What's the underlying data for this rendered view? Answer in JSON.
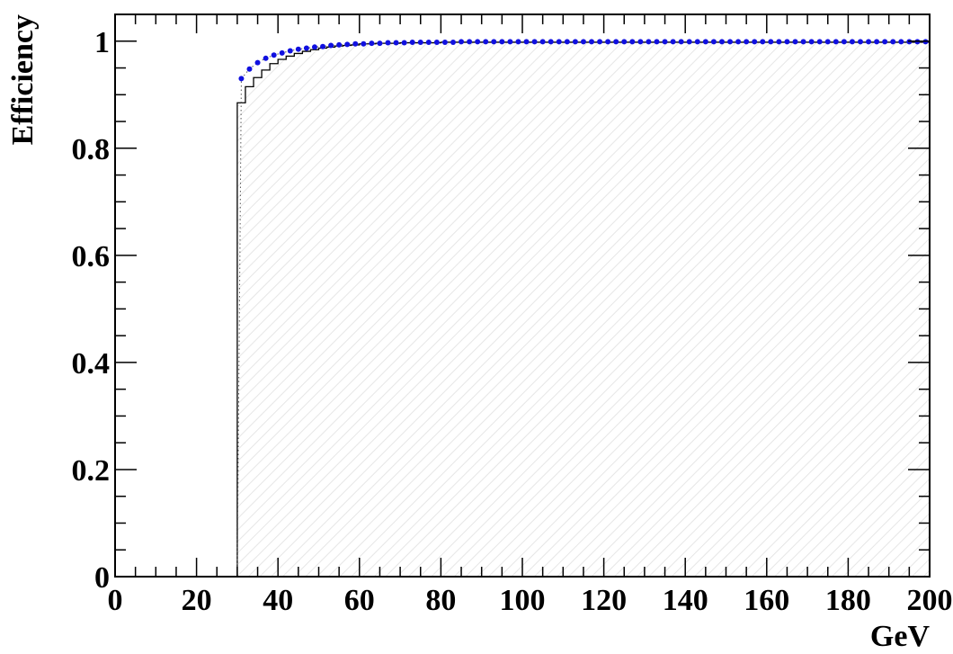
{
  "chart_data": {
    "type": "line",
    "title": "",
    "xlabel": "GeV",
    "ylabel": "Efficiency",
    "xlim": [
      0,
      200
    ],
    "ylim": [
      0,
      1.05
    ],
    "x_ticks": [
      0,
      20,
      40,
      60,
      80,
      100,
      120,
      140,
      160,
      180,
      200
    ],
    "x_tick_labels": [
      "0",
      "20",
      "40",
      "60",
      "80",
      "100",
      "120",
      "140",
      "160",
      "180",
      "200"
    ],
    "y_ticks": [
      0,
      0.2,
      0.4,
      0.6,
      0.8,
      1
    ],
    "y_tick_labels": [
      "0",
      "0.2",
      "0.4",
      "0.6",
      "0.8",
      "1"
    ],
    "grid": false,
    "legend": false,
    "colors": {
      "points": "#1010e0",
      "step": "#000000",
      "hatch": "#e6e6e6"
    },
    "series": [
      {
        "style": "points",
        "x": [
          31,
          33,
          35,
          37,
          39,
          41,
          43,
          45,
          47,
          49,
          51,
          53,
          55,
          57,
          59,
          61,
          63,
          65,
          67,
          69,
          71,
          73,
          75,
          77,
          79,
          81,
          83,
          85,
          87,
          89,
          91,
          93,
          95,
          97,
          99,
          101,
          103,
          105,
          107,
          109,
          111,
          113,
          115,
          117,
          119,
          121,
          123,
          125,
          127,
          129,
          131,
          133,
          135,
          137,
          139,
          141,
          143,
          145,
          147,
          149,
          151,
          153,
          155,
          157,
          159,
          161,
          163,
          165,
          167,
          169,
          171,
          173,
          175,
          177,
          179,
          181,
          183,
          185,
          187,
          189,
          191,
          193,
          195,
          197,
          199
        ],
        "y": [
          0.93,
          0.948,
          0.96,
          0.968,
          0.974,
          0.978,
          0.982,
          0.985,
          0.987,
          0.989,
          0.99,
          0.992,
          0.993,
          0.994,
          0.995,
          0.995,
          0.996,
          0.996,
          0.997,
          0.997,
          0.997,
          0.998,
          0.998,
          0.998,
          0.998,
          0.998,
          0.998,
          0.999,
          0.999,
          0.999,
          0.999,
          0.999,
          0.999,
          0.999,
          0.999,
          0.999,
          0.999,
          0.999,
          0.999,
          0.999,
          0.999,
          0.999,
          0.999,
          0.999,
          0.999,
          0.999,
          0.999,
          0.999,
          0.999,
          0.999,
          0.999,
          0.999,
          0.999,
          0.999,
          0.999,
          0.999,
          0.999,
          0.999,
          0.999,
          0.999,
          0.999,
          0.999,
          0.999,
          0.999,
          0.999,
          0.999,
          0.999,
          0.999,
          0.999,
          0.999,
          0.999,
          0.999,
          0.999,
          0.999,
          0.999,
          0.999,
          0.999,
          0.999,
          0.999,
          0.999,
          0.999,
          0.999,
          0.999,
          0.999,
          0.999
        ]
      },
      {
        "style": "step",
        "bin_edges": [
          30,
          32,
          34,
          36,
          38,
          40,
          42,
          44,
          46,
          48,
          50,
          52,
          54,
          56,
          58,
          60,
          64,
          70,
          80,
          200
        ],
        "y": [
          0.885,
          0.915,
          0.932,
          0.946,
          0.958,
          0.966,
          0.972,
          0.977,
          0.981,
          0.984,
          0.987,
          0.989,
          0.991,
          0.992,
          0.993,
          0.995,
          0.996,
          0.997,
          0.998
        ]
      }
    ]
  }
}
